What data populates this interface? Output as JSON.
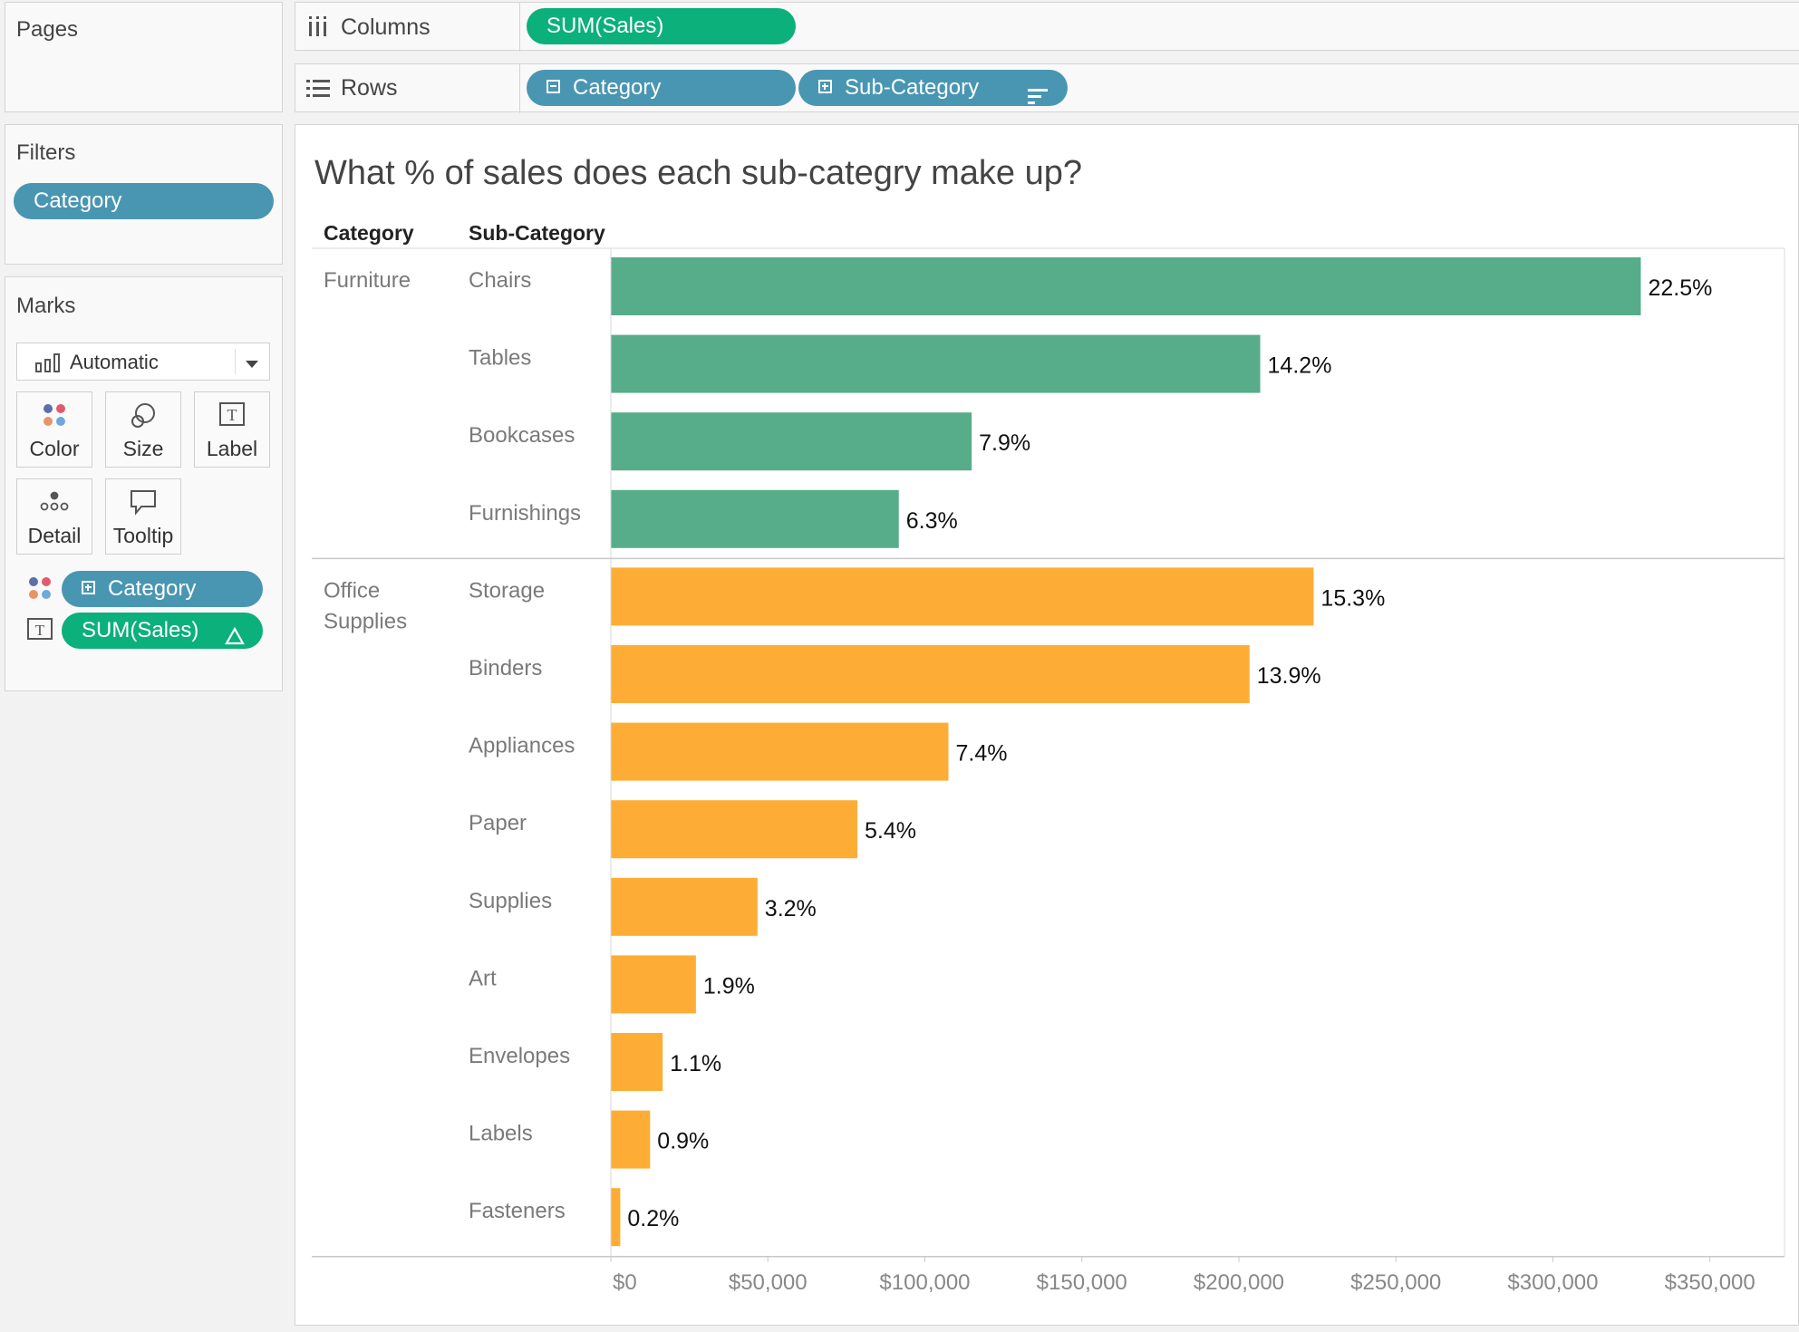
{
  "shelves": {
    "pages_title": "Pages",
    "columns_label": "Columns",
    "rows_label": "Rows",
    "column_pills": [
      "SUM(Sales)"
    ],
    "row_pills": [
      "Category",
      "Sub-Category"
    ]
  },
  "filters": {
    "title": "Filters",
    "pills": [
      "Category"
    ]
  },
  "marks": {
    "title": "Marks",
    "mark_type": "Automatic",
    "buttons": [
      "Color",
      "Size",
      "Label",
      "Detail",
      "Tooltip"
    ],
    "color_pill": "Category",
    "label_pill": "SUM(Sales)"
  },
  "colors": {
    "furniture": "#57ad8a",
    "office_supplies": "#fdad35",
    "pill_blue": "#4996b2",
    "pill_green": "#0bb07b"
  },
  "chart_data": {
    "type": "bar",
    "orientation": "horizontal",
    "title": "What % of sales does each sub-categry make up?",
    "row_headers": [
      "Category",
      "Sub-Category"
    ],
    "groups": [
      {
        "category": "Furniture",
        "color": "#57ad8a",
        "items": [
          {
            "name": "Chairs",
            "value": 328000,
            "label": "22.5%"
          },
          {
            "name": "Tables",
            "value": 206800,
            "label": "14.2%"
          },
          {
            "name": "Bookcases",
            "value": 114900,
            "label": "7.9%"
          },
          {
            "name": "Furnishings",
            "value": 91700,
            "label": "6.3%"
          }
        ]
      },
      {
        "category": "Office Supplies",
        "category_lines": [
          "Office",
          "Supplies"
        ],
        "color": "#fdad35",
        "items": [
          {
            "name": "Storage",
            "value": 223800,
            "label": "15.3%"
          },
          {
            "name": "Binders",
            "value": 203400,
            "label": "13.9%"
          },
          {
            "name": "Appliances",
            "value": 107500,
            "label": "7.4%"
          },
          {
            "name": "Paper",
            "value": 78500,
            "label": "5.4%"
          },
          {
            "name": "Supplies",
            "value": 46700,
            "label": "3.2%"
          },
          {
            "name": "Art",
            "value": 27100,
            "label": "1.9%"
          },
          {
            "name": "Envelopes",
            "value": 16500,
            "label": "1.1%"
          },
          {
            "name": "Labels",
            "value": 12500,
            "label": "0.9%"
          },
          {
            "name": "Fasteners",
            "value": 3000,
            "label": "0.2%"
          }
        ]
      }
    ],
    "x_ticks": [
      0,
      50000,
      100000,
      150000,
      200000,
      250000,
      300000,
      350000
    ],
    "x_tick_labels": [
      "$0",
      "$50,000",
      "$100,000",
      "$150,000",
      "$200,000",
      "$250,000",
      "$300,000",
      "$350,000"
    ],
    "xlim": [
      0,
      370000
    ],
    "grid": false
  }
}
